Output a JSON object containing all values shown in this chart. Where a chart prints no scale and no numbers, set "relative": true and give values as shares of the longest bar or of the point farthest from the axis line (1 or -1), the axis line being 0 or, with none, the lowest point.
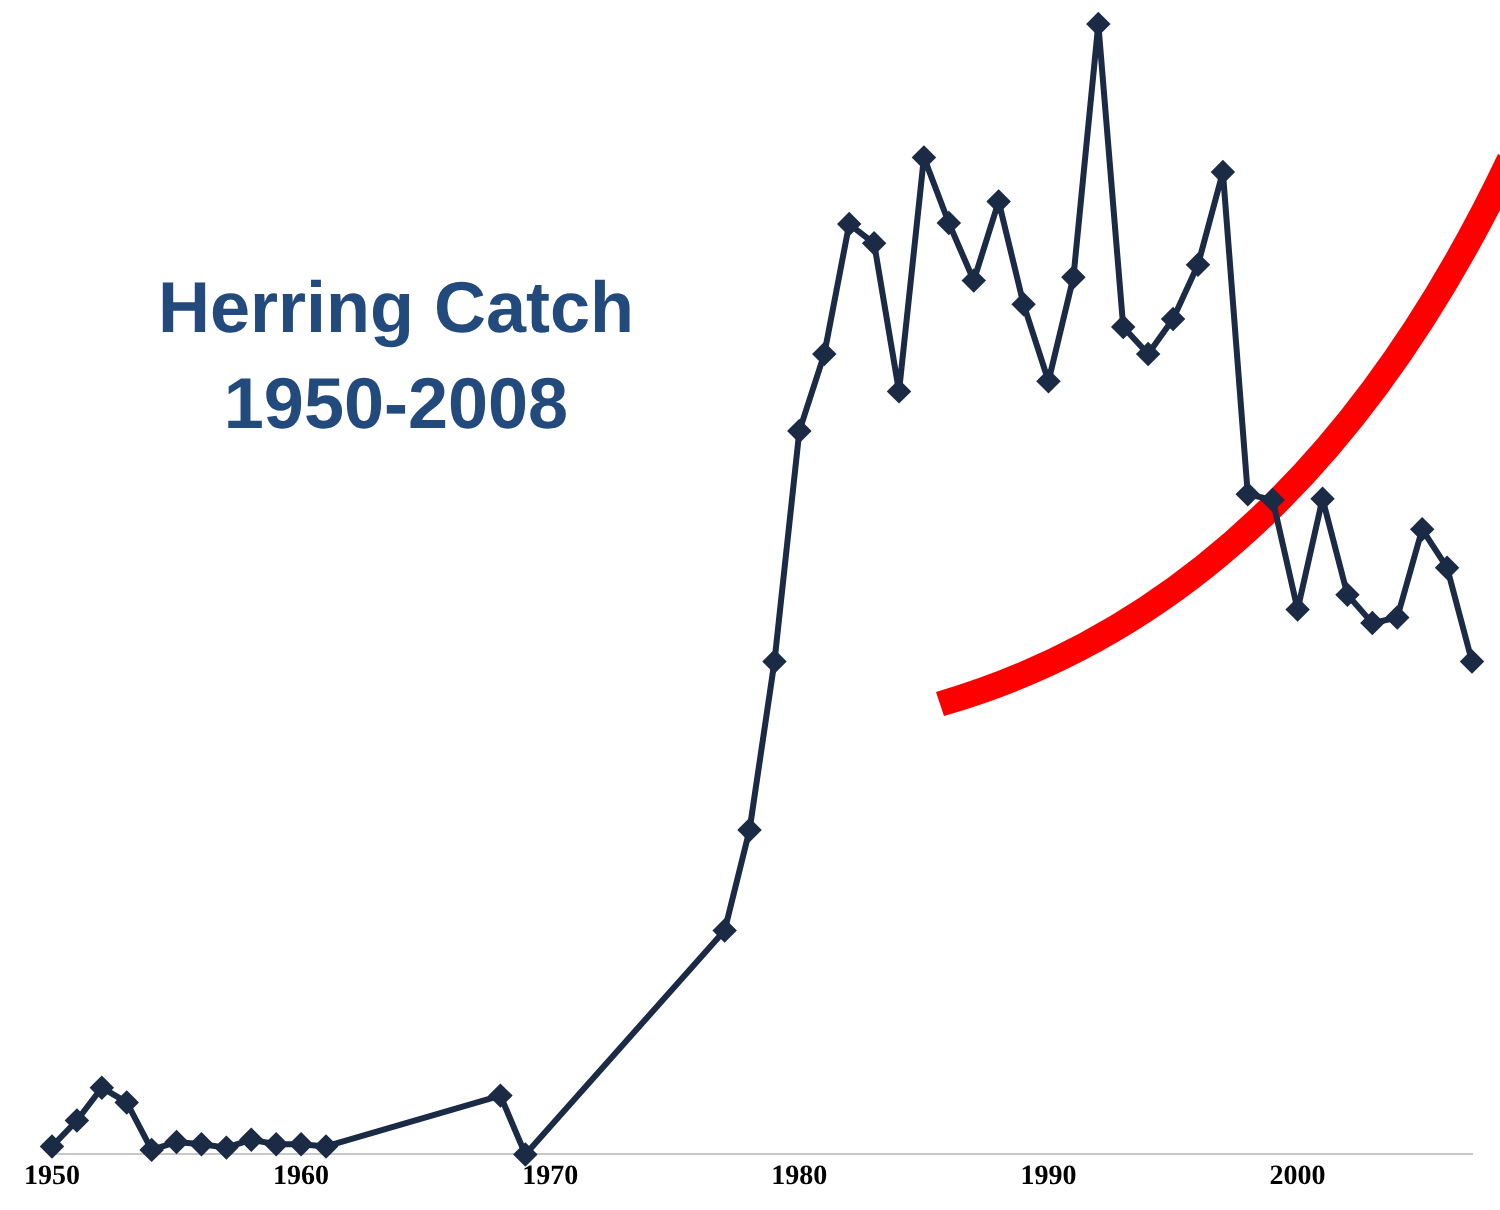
{
  "chart_data": {
    "type": "line",
    "title": "Herring Catch 1950-2008",
    "relative": true,
    "x": [
      1950,
      1951,
      1952,
      1953,
      1954,
      1955,
      1956,
      1957,
      1958,
      1959,
      1960,
      1961,
      1968,
      1969,
      1977,
      1978,
      1979,
      1980,
      1981,
      1982,
      1983,
      1984,
      1985,
      1986,
      1987,
      1988,
      1989,
      1990,
      1991,
      1992,
      1993,
      1994,
      1995,
      1996,
      1997,
      1998,
      1999,
      2000,
      2001,
      2002,
      2003,
      2004,
      2005,
      2006,
      2007
    ],
    "values": [
      0.007,
      0.03,
      0.059,
      0.046,
      0.004,
      0.011,
      0.009,
      0.006,
      0.013,
      0.009,
      0.009,
      0.007,
      0.052,
      0,
      0.198,
      0.287,
      0.436,
      0.64,
      0.708,
      0.823,
      0.806,
      0.675,
      0.882,
      0.824,
      0.773,
      0.843,
      0.752,
      0.684,
      0.776,
      1,
      0.732,
      0.708,
      0.739,
      0.787,
      0.869,
      0.584,
      0.579,
      0.482,
      0.58,
      0.495,
      0.47,
      0.475,
      0.553,
      0.519,
      0.436
    ],
    "color": "#1b2a45",
    "marker": "diamond",
    "line_style": "solid",
    "xlim": [
      1950,
      2007
    ],
    "xticks": [
      1950,
      1960,
      1970,
      1980,
      1990,
      2000
    ],
    "grid": false,
    "legend": false
  }
}
